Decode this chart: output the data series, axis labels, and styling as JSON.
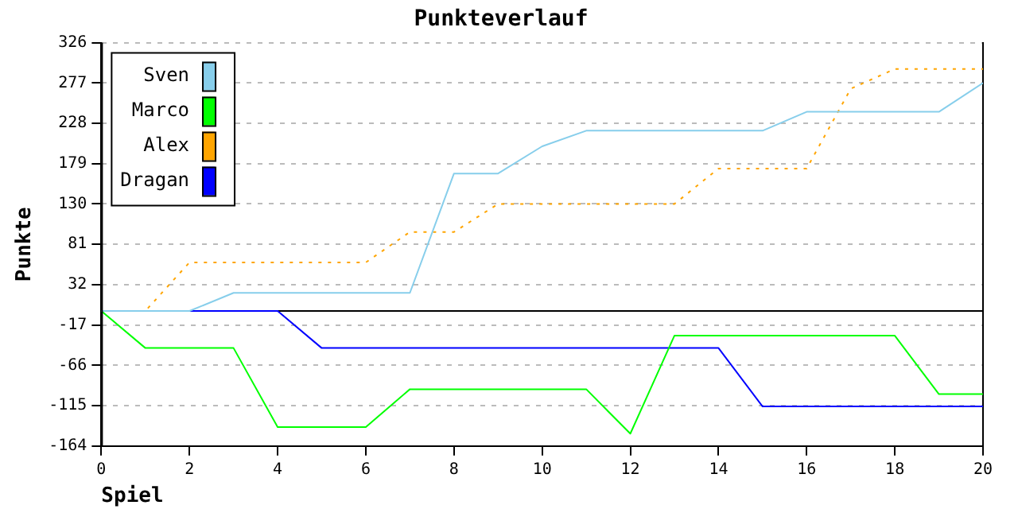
{
  "chart_data": {
    "type": "line",
    "title": "Punkteverlauf",
    "xlabel": "Spiel",
    "ylabel": "Punkte",
    "x": [
      0,
      1,
      2,
      3,
      4,
      5,
      6,
      7,
      8,
      9,
      10,
      11,
      12,
      13,
      14,
      15,
      16,
      17,
      18,
      19,
      20
    ],
    "xlim": [
      0,
      20
    ],
    "xticks": [
      0,
      2,
      4,
      6,
      8,
      10,
      12,
      14,
      16,
      18,
      20
    ],
    "ylim": [
      -164,
      326
    ],
    "yticks": [
      -164,
      -115,
      -66,
      -17,
      32,
      81,
      130,
      179,
      228,
      277,
      326
    ],
    "grid": "y",
    "legend": "top left",
    "marker": "none",
    "ref_lines": [
      {
        "axis": "y",
        "value": 0,
        "color": "#000000",
        "line_style": "solid"
      }
    ],
    "series": [
      {
        "name": "Sven",
        "color": "#87ceeb",
        "line_style": "solid",
        "values": [
          0,
          0,
          0,
          22,
          22,
          22,
          22,
          22,
          167,
          167,
          200,
          219,
          219,
          219,
          219,
          219,
          242,
          242,
          242,
          242,
          277
        ]
      },
      {
        "name": "Marco",
        "color": "#00ff00",
        "line_style": "solid",
        "values": [
          0,
          -45,
          -45,
          -45,
          -141,
          -141,
          -141,
          -95,
          -95,
          -95,
          -95,
          -95,
          -149,
          -30,
          -30,
          -30,
          -30,
          -30,
          -30,
          -101,
          -101
        ]
      },
      {
        "name": "Alex",
        "color": "#ffa500",
        "line_style": "dotted",
        "values": [
          0,
          0,
          59,
          59,
          59,
          59,
          59,
          96,
          96,
          130,
          130,
          130,
          130,
          130,
          173,
          173,
          173,
          270,
          294,
          294,
          294
        ]
      },
      {
        "name": "Dragan",
        "color": "#0000ff",
        "line_style": "solid",
        "values": [
          0,
          0,
          0,
          0,
          0,
          -45,
          -45,
          -45,
          -45,
          -45,
          -45,
          -45,
          -45,
          -45,
          -45,
          -116,
          -116,
          -116,
          -116,
          -116,
          -116
        ]
      }
    ]
  }
}
